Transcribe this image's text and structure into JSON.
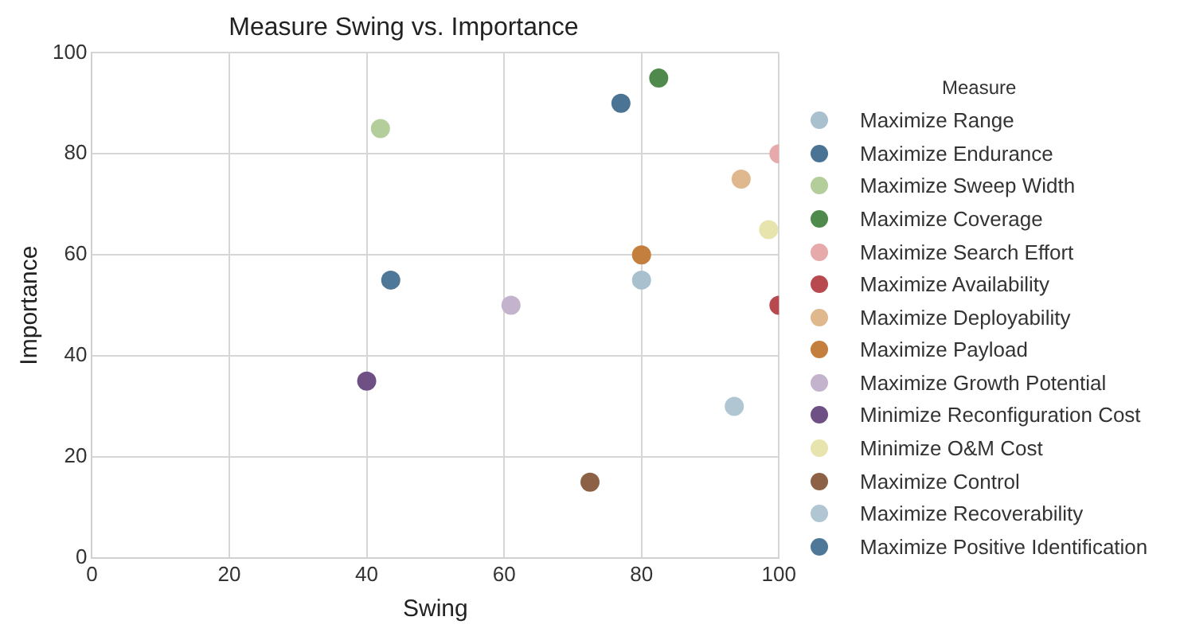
{
  "chart_data": {
    "type": "scatter",
    "title": "Measure Swing vs. Importance",
    "xlabel": "Swing",
    "ylabel": "Importance",
    "legend_title": "Measure",
    "legend": "right",
    "grid": true,
    "marker": "circle",
    "xlim": [
      0,
      100
    ],
    "xticks": [
      0,
      20,
      40,
      60,
      80,
      100
    ],
    "ylim": [
      0,
      100
    ],
    "yticks": [
      0,
      20,
      40,
      60,
      80,
      100
    ],
    "series": [
      {
        "name": "Maximize Range",
        "color": "#a9c1cf",
        "x": [
          80
        ],
        "values": [
          55
        ]
      },
      {
        "name": "Maximize Endurance",
        "color": "#4a7394",
        "x": [
          77
        ],
        "values": [
          90
        ]
      },
      {
        "name": "Maximize Sweep Width",
        "color": "#b3cd9b",
        "x": [
          42
        ],
        "values": [
          85
        ]
      },
      {
        "name": "Maximize Coverage",
        "color": "#4f8a4c",
        "x": [
          82.5
        ],
        "values": [
          95
        ]
      },
      {
        "name": "Maximize Search Effort",
        "color": "#e6aaaa",
        "x": [
          100
        ],
        "values": [
          80
        ]
      },
      {
        "name": "Maximize Availability",
        "color": "#b84a4f",
        "x": [
          100
        ],
        "values": [
          50
        ]
      },
      {
        "name": "Maximize Deployability",
        "color": "#dfb98d",
        "x": [
          94.5
        ],
        "values": [
          75
        ]
      },
      {
        "name": "Maximize Payload",
        "color": "#c47e3e",
        "x": [
          80
        ],
        "values": [
          60
        ]
      },
      {
        "name": "Maximize Growth Potential",
        "color": "#c4b3cc",
        "x": [
          61
        ],
        "values": [
          50
        ]
      },
      {
        "name": "Minimize Reconfiguration Cost",
        "color": "#6f5085",
        "x": [
          40
        ],
        "values": [
          35
        ]
      },
      {
        "name": "Minimize O&M Cost",
        "color": "#e8e4ad",
        "x": [
          98.5
        ],
        "values": [
          65
        ]
      },
      {
        "name": "Maximize Control",
        "color": "#8d6146",
        "x": [
          72.5
        ],
        "values": [
          15
        ]
      },
      {
        "name": "Maximize Recoverability",
        "color": "#b0c6d2",
        "x": [
          93.5
        ],
        "values": [
          30
        ]
      },
      {
        "name": "Maximize Positive Identification",
        "color": "#4f7898",
        "x": [
          43.5
        ],
        "values": [
          55
        ]
      }
    ]
  }
}
